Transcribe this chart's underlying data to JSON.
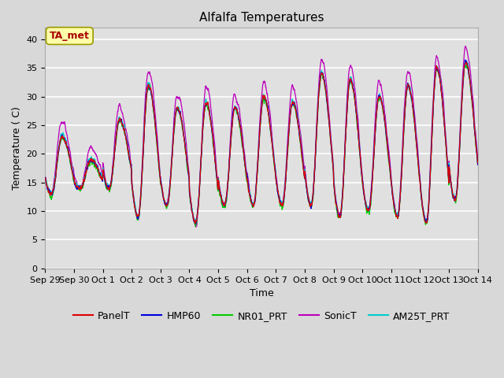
{
  "title": "Alfalfa Temperatures",
  "xlabel": "Time",
  "ylabel": "Temperature ( C)",
  "ylim": [
    0,
    42
  ],
  "yticks": [
    0,
    5,
    10,
    15,
    20,
    25,
    30,
    35,
    40
  ],
  "fig_bg_color": "#d8d8d8",
  "plot_bg_color": "#e0e0e0",
  "grid_color": "#ffffff",
  "series_colors": {
    "PanelT": "#dd0000",
    "HMP60": "#0000dd",
    "NR01_PRT": "#00cc00",
    "SonicT": "#bb00bb",
    "AM25T_PRT": "#00cccc"
  },
  "annotation_text": "TA_met",
  "annotation_color": "#aa0000",
  "annotation_bg": "#ffffaa",
  "annotation_border": "#999900",
  "title_fontsize": 11,
  "axis_fontsize": 9,
  "tick_fontsize": 8,
  "legend_fontsize": 9
}
